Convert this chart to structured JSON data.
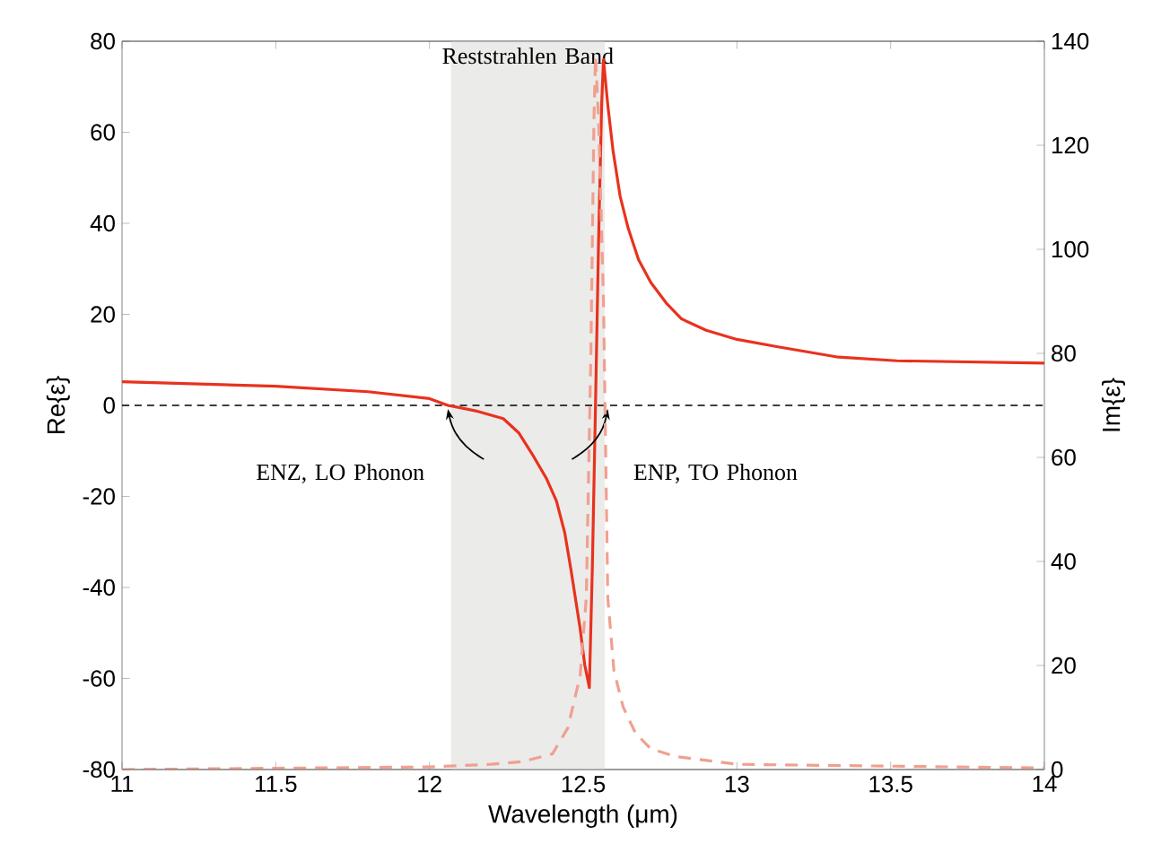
{
  "chart_data": {
    "type": "line",
    "xlabel": "Wavelength (μm)",
    "ylabel": "Re{ε}",
    "y2label": "Im{ε}",
    "xlim": [
      11,
      14
    ],
    "xticks": [
      11,
      11.5,
      12,
      12.5,
      13,
      13.5,
      14
    ],
    "ylim": [
      -80,
      80
    ],
    "yticks": [
      -80,
      -60,
      -40,
      -20,
      0,
      20,
      40,
      60,
      80
    ],
    "y2lim": [
      0,
      140
    ],
    "y2ticks": [
      0,
      20,
      40,
      60,
      80,
      100,
      120,
      140
    ],
    "series": [
      {
        "color": "#e8321e",
        "line_style": "solid",
        "x": [
          11,
          11.5,
          11.8,
          12.0,
          12.06,
          12.15,
          12.24,
          12.29,
          12.335,
          12.38,
          12.413,
          12.44,
          12.46,
          12.49,
          12.505,
          12.52,
          12.53,
          12.54,
          12.55,
          12.56,
          12.566,
          12.58,
          12.597,
          12.62,
          12.646,
          12.68,
          12.72,
          12.77,
          12.82,
          12.9,
          13.0,
          13.13,
          13.33,
          13.52,
          14
        ],
        "values": [
          5.2,
          4.2,
          3.0,
          1.5,
          0,
          -1.2,
          -2.9,
          -6,
          -10.8,
          -16,
          -21,
          -28,
          -36,
          -49,
          -57,
          -62,
          -35,
          0,
          36,
          66,
          76,
          66,
          56,
          46,
          39,
          32,
          27,
          22.5,
          19,
          16.5,
          14.5,
          12.9,
          10.6,
          9.8,
          9.3
        ]
      },
      {
        "color": "#f0a090",
        "line_style": "dashed",
        "axis": "y2",
        "x": [
          11,
          12,
          12.2,
          12.3,
          12.4,
          12.45,
          12.49,
          12.51,
          12.525,
          12.535,
          12.54,
          12.55,
          12.566,
          12.58,
          12.6,
          12.63,
          12.67,
          12.72,
          12.8,
          13,
          14
        ],
        "values": [
          0,
          0.5,
          1,
          1.5,
          3,
          8,
          18,
          33,
          80,
          125,
          137,
          125,
          90,
          33,
          19,
          12,
          7,
          4,
          2.5,
          1,
          0.3
        ]
      }
    ],
    "ref_lines": [
      {
        "axis": "y",
        "value": 0,
        "color": "#000000",
        "line_style": "dashed"
      }
    ],
    "bands": [
      {
        "axis": "x",
        "from": 12.07,
        "to": 12.57,
        "label": "Reststrahlen Band",
        "color": "#ebebe9"
      }
    ],
    "annotations": [
      {
        "text": "ENZ, LO Phonon",
        "x": 12.06,
        "y": 0
      },
      {
        "text": "ENP, TO Phonon",
        "x": 12.58,
        "y": 0
      }
    ]
  }
}
